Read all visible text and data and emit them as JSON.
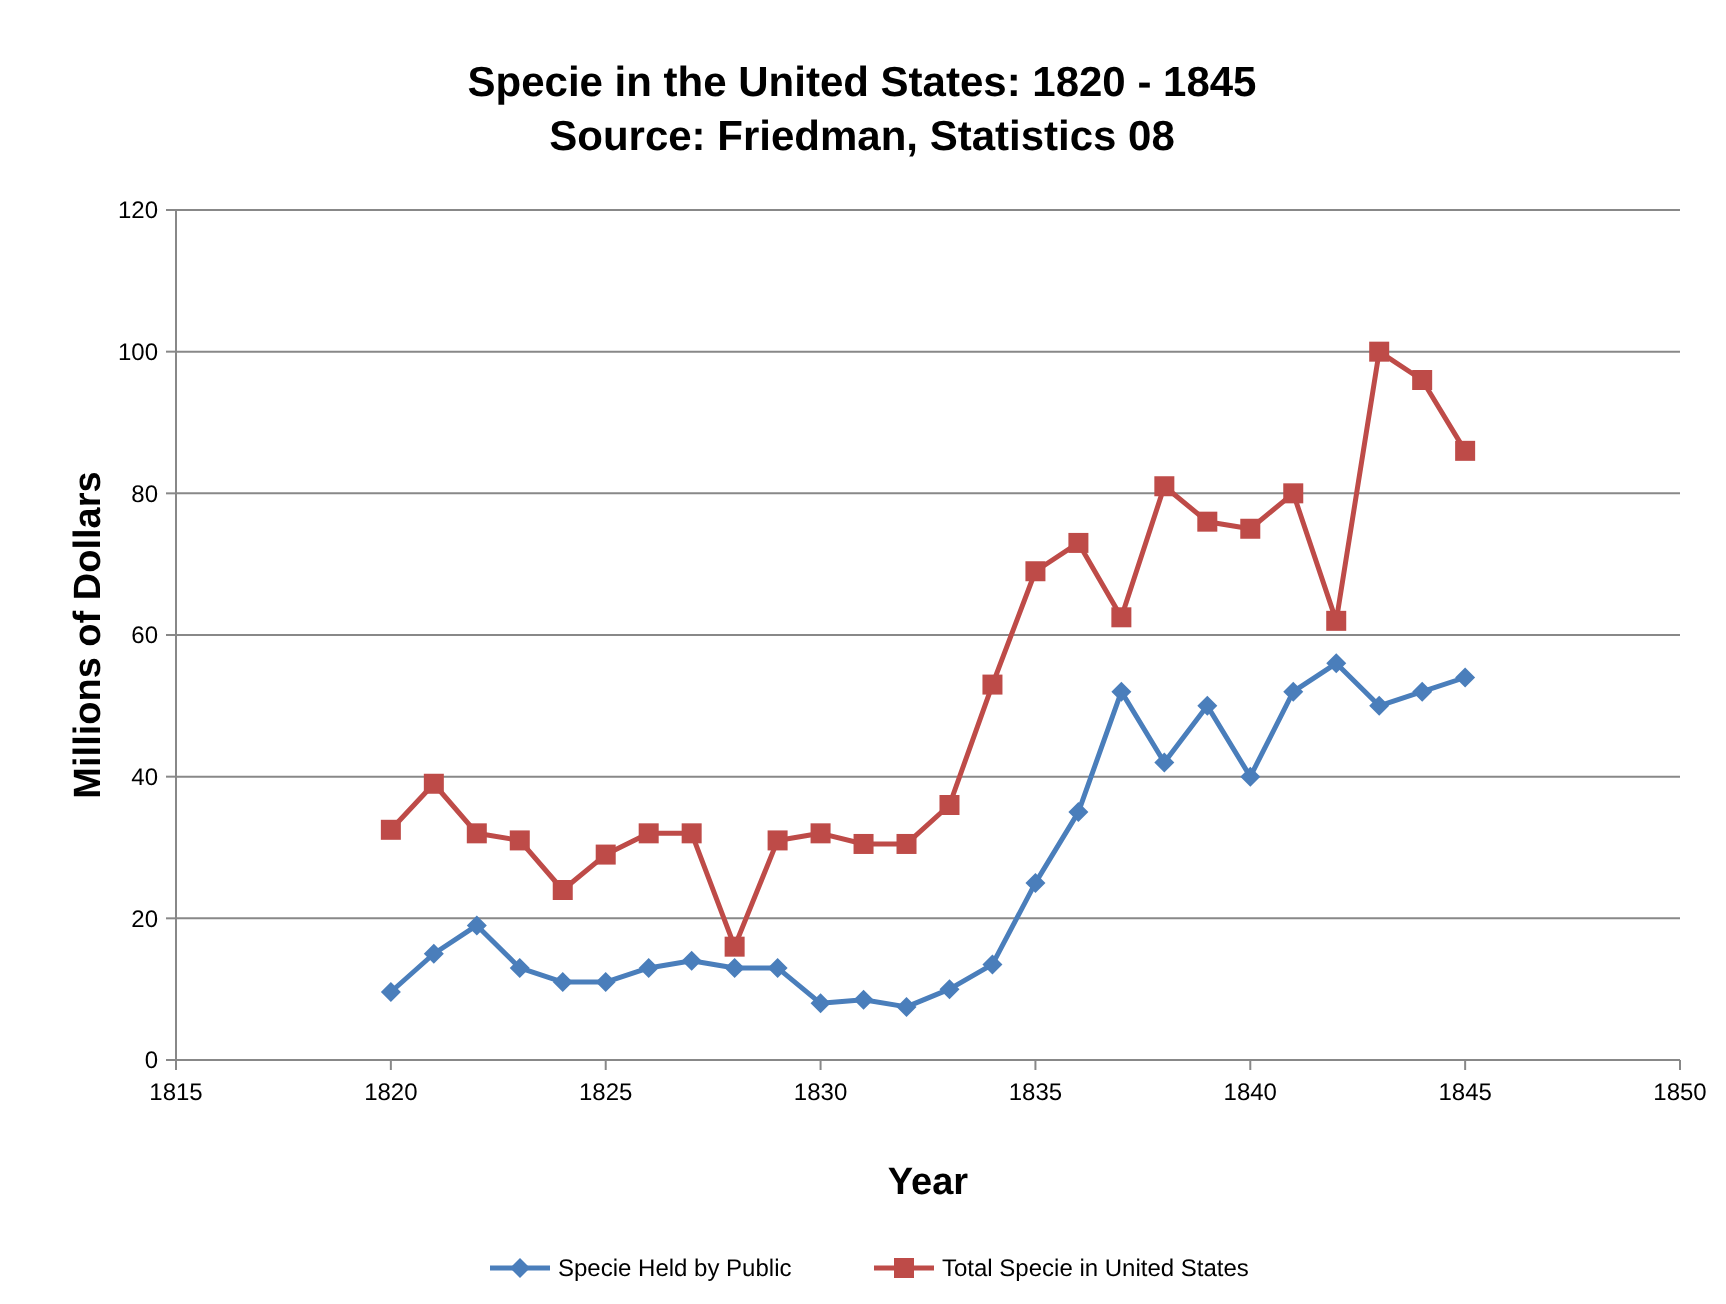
{
  "chart_data": {
    "type": "line",
    "title": "Specie in the United States: 1820 - 1845",
    "subtitle": "Source: Friedman, Statistics 08",
    "xlabel": "Year",
    "ylabel": "Millions of Dollars",
    "x": [
      1820,
      1821,
      1822,
      1823,
      1824,
      1825,
      1826,
      1827,
      1828,
      1829,
      1830,
      1831,
      1832,
      1833,
      1834,
      1835,
      1836,
      1837,
      1838,
      1839,
      1840,
      1841,
      1842,
      1843,
      1844,
      1845
    ],
    "series": [
      {
        "name": "Specie Held by Public",
        "color": "#4a7ebb",
        "marker": "diamond",
        "values": [
          9.6,
          15,
          19,
          13,
          11,
          11,
          13,
          14,
          13,
          13,
          8,
          8.5,
          7.5,
          10,
          13.5,
          25,
          35,
          52,
          42,
          50,
          40,
          52,
          56,
          50,
          52,
          54
        ]
      },
      {
        "name": "Total Specie in United States",
        "color": "#be4b48",
        "marker": "square",
        "values": [
          32.5,
          39,
          32,
          31,
          24,
          29,
          32,
          32,
          16,
          31,
          32,
          30.5,
          30.5,
          36,
          53,
          69,
          73,
          62.5,
          81,
          76,
          75,
          80,
          62,
          100,
          96,
          86
        ]
      }
    ],
    "xlim": [
      1815,
      1850
    ],
    "xticks": [
      1815,
      1820,
      1825,
      1830,
      1835,
      1840,
      1845,
      1850
    ],
    "ylim": [
      0,
      120
    ],
    "yticks": [
      0,
      20,
      40,
      60,
      80,
      100,
      120
    ],
    "grid": "y",
    "legend": "bottom",
    "line_style": "solid"
  }
}
